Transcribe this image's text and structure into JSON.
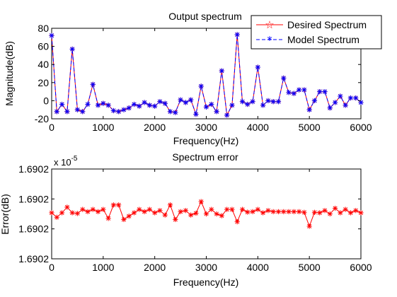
{
  "chart_data": [
    {
      "type": "line",
      "title": "Output spectrum",
      "xlabel": "Frequency(Hz)",
      "ylabel": "Magnitude(dB)",
      "xlim": [
        0,
        6000
      ],
      "ylim": [
        -20,
        80
      ],
      "xticks": [
        "0",
        "1000",
        "2000",
        "3000",
        "4000",
        "5000",
        "6000"
      ],
      "yticks": [
        "-20",
        "0",
        "20",
        "40",
        "60",
        "80"
      ],
      "x": [
        0,
        100,
        200,
        300,
        400,
        500,
        600,
        700,
        800,
        900,
        1000,
        1100,
        1200,
        1300,
        1400,
        1500,
        1600,
        1700,
        1800,
        1900,
        2000,
        2100,
        2200,
        2300,
        2400,
        2500,
        2600,
        2700,
        2800,
        2900,
        3000,
        3100,
        3200,
        3300,
        3400,
        3500,
        3600,
        3700,
        3800,
        3900,
        4000,
        4100,
        4200,
        4300,
        4400,
        4500,
        4600,
        4700,
        4800,
        4900,
        5000,
        5100,
        5200,
        5300,
        5400,
        5500,
        5600,
        5700,
        5800,
        5900,
        6000
      ],
      "series": [
        {
          "name": "Desired Spectrum",
          "color": "#ff0000",
          "values": [
            72,
            -12,
            -4,
            -12,
            57,
            -10,
            -12,
            -4,
            18,
            -5,
            -3,
            -5,
            -11,
            -12,
            -10,
            -8,
            -4,
            -6,
            -2,
            -5,
            -6,
            -1,
            -3,
            -12,
            -13,
            1,
            -2,
            1,
            -15,
            16,
            -7,
            -4,
            -12,
            33,
            -16,
            -5,
            73,
            -1,
            -4,
            -1,
            37,
            -5,
            0,
            -1,
            -1,
            25,
            9,
            8,
            12,
            12,
            -10,
            0,
            10,
            10,
            -8,
            -2,
            5,
            -5,
            3,
            3,
            -2
          ]
        },
        {
          "name": "Model Spectrum",
          "color": "#0000ff",
          "values": [
            72,
            -12,
            -4,
            -12,
            57,
            -10,
            -12,
            -4,
            18,
            -5,
            -3,
            -5,
            -11,
            -12,
            -10,
            -8,
            -4,
            -6,
            -2,
            -5,
            -6,
            -1,
            -3,
            -12,
            -13,
            1,
            -2,
            1,
            -15,
            16,
            -7,
            -4,
            -12,
            33,
            -16,
            -5,
            73,
            -1,
            -4,
            -1,
            37,
            -5,
            0,
            -1,
            -1,
            25,
            9,
            8,
            12,
            12,
            -10,
            0,
            10,
            10,
            -8,
            -2,
            5,
            -5,
            3,
            3,
            -2
          ]
        }
      ],
      "legend": "top-right",
      "grid": false
    },
    {
      "type": "line",
      "title": "Spectrum error",
      "xlabel": "Frequency(Hz)",
      "ylabel": "Error(dB)",
      "axis_multiplier": "x 10",
      "axis_multiplier_exponent": "-5",
      "xlim": [
        0,
        6000
      ],
      "yrel": [
        0,
        4
      ],
      "xticks": [
        "0",
        "1000",
        "2000",
        "3000",
        "4000",
        "5000",
        "6000"
      ],
      "yticks": [
        "1.6902",
        "1.6902",
        "1.6902",
        "1.6902"
      ],
      "x": [
        0,
        100,
        200,
        300,
        400,
        500,
        600,
        700,
        800,
        900,
        1000,
        1100,
        1200,
        1300,
        1400,
        1500,
        1600,
        1700,
        1800,
        1900,
        2000,
        2100,
        2200,
        2300,
        2400,
        2500,
        2600,
        2700,
        2800,
        2900,
        3000,
        3100,
        3200,
        3300,
        3400,
        3500,
        3600,
        3700,
        3800,
        3900,
        4000,
        4100,
        4200,
        4300,
        4400,
        4500,
        4600,
        4700,
        4800,
        4900,
        5000,
        5100,
        5200,
        5300,
        5400,
        5500,
        5600,
        5700,
        5800,
        5900,
        6000
      ],
      "series": [
        {
          "color": "#ff0000",
          "values_relative": [
            2.05,
            1.85,
            2.05,
            2.3,
            2.05,
            2.02,
            2.2,
            2.1,
            2.2,
            2.1,
            2.2,
            1.8,
            2.4,
            2.4,
            1.75,
            1.9,
            2.05,
            2.2,
            2.1,
            2.2,
            2.05,
            2.15,
            1.95,
            2.4,
            1.75,
            2.1,
            2.15,
            1.95,
            2.03,
            2.55,
            2.0,
            2.2,
            2.0,
            1.92,
            2.2,
            2.2,
            1.65,
            2.2,
            2.08,
            2.1,
            2.2,
            2.05,
            2.15,
            2.1,
            2.1,
            2.1,
            2.1,
            2.1,
            2.1,
            2.07,
            1.45,
            2.07,
            2.05,
            2.15,
            2.0,
            2.25,
            2.05,
            2.2,
            2.05,
            2.15,
            2.05
          ]
        }
      ],
      "grid": false
    }
  ]
}
